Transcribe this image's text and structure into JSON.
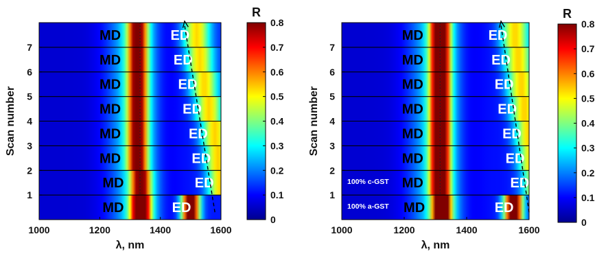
{
  "chart_data": [
    {
      "type": "heatmap",
      "xlabel": "λ, nm",
      "ylabel": "Scan number",
      "xlim": [
        1000,
        1600
      ],
      "xticks": [
        "1000",
        "1200",
        "1400",
        "1600"
      ],
      "yticks": [
        "1",
        "2",
        "3",
        "4",
        "5",
        "6",
        "7"
      ],
      "colorbar": {
        "title": "R",
        "range": [
          0,
          0.8
        ],
        "ticks": [
          "0",
          "0.1",
          "0.2",
          "0.3",
          "0.4",
          "0.5",
          "0.6",
          "0.7",
          "0.8"
        ]
      },
      "rows": [
        {
          "scan": 1,
          "md_wavelength": 1335,
          "ed_wavelength": 1470,
          "md_label": "MD",
          "ed_label": "ED"
        },
        {
          "scan": 2,
          "md_wavelength": 1335,
          "ed_wavelength": 1545,
          "md_label": "MD",
          "ed_label": "ED"
        },
        {
          "scan": 3,
          "md_wavelength": 1325,
          "ed_wavelength": 1535,
          "md_label": "MD",
          "ed_label": "ED"
        },
        {
          "scan": 4,
          "md_wavelength": 1325,
          "ed_wavelength": 1525,
          "md_label": "MD",
          "ed_label": "ED"
        },
        {
          "scan": 5,
          "md_wavelength": 1325,
          "ed_wavelength": 1505,
          "md_label": "MD",
          "ed_label": "ED"
        },
        {
          "scan": 6,
          "md_wavelength": 1325,
          "ed_wavelength": 1490,
          "md_label": "MD",
          "ed_label": "ED"
        },
        {
          "scan": 7,
          "md_wavelength": 1325,
          "ed_wavelength": 1475,
          "md_label": "MD",
          "ed_label": "ED"
        },
        {
          "scan": 8,
          "md_wavelength": 1325,
          "ed_wavelength": 1465,
          "md_label": "MD",
          "ed_label": "ED"
        }
      ],
      "md_guide_line_wavelength": 1333,
      "ed_trend_arrow": {
        "from": [
          1580,
          1
        ],
        "to": [
          1480,
          8
        ]
      }
    },
    {
      "type": "heatmap",
      "xlabel": "λ, nm",
      "ylabel": "Scan number",
      "xlim": [
        1000,
        1600
      ],
      "xticks": [
        "1000",
        "1200",
        "1400",
        "1600"
      ],
      "yticks": [
        "1",
        "2",
        "3",
        "4",
        "5",
        "6",
        "7"
      ],
      "colorbar": {
        "title": "R",
        "range": [
          0,
          0.8
        ],
        "ticks": [
          "0",
          "0.1",
          "0.2",
          "0.3",
          "0.4",
          "0.5",
          "0.6",
          "0.7",
          "0.8"
        ]
      },
      "rows": [
        {
          "scan": 1,
          "md_wavelength": 1320,
          "ed_wavelength": 1520,
          "md_label": "MD",
          "ed_label": "ED",
          "note": "100% a-GST"
        },
        {
          "scan": 2,
          "md_wavelength": 1315,
          "ed_wavelength": 1570,
          "md_label": "MD",
          "ed_label": "ED",
          "note": "100% c-GST"
        },
        {
          "scan": 3,
          "md_wavelength": 1315,
          "ed_wavelength": 1555,
          "md_label": "MD",
          "ed_label": "ED"
        },
        {
          "scan": 4,
          "md_wavelength": 1315,
          "ed_wavelength": 1545,
          "md_label": "MD",
          "ed_label": "ED"
        },
        {
          "scan": 5,
          "md_wavelength": 1315,
          "ed_wavelength": 1530,
          "md_label": "MD",
          "ed_label": "ED"
        },
        {
          "scan": 6,
          "md_wavelength": 1315,
          "ed_wavelength": 1520,
          "md_label": "MD",
          "ed_label": "ED"
        },
        {
          "scan": 7,
          "md_wavelength": 1315,
          "ed_wavelength": 1510,
          "md_label": "MD",
          "ed_label": "ED"
        },
        {
          "scan": 8,
          "md_wavelength": 1315,
          "ed_wavelength": 1500,
          "md_label": "MD",
          "ed_label": "ED"
        }
      ],
      "md_guide_line_wavelength": 1315,
      "ed_trend_arrow": {
        "from": [
          1600,
          1
        ],
        "to": [
          1510,
          8
        ]
      }
    }
  ],
  "colormap": [
    "#00008f",
    "#0000ff",
    "#0080ff",
    "#00ffff",
    "#80ff80",
    "#ffff00",
    "#ff8000",
    "#ff0000",
    "#800000"
  ]
}
